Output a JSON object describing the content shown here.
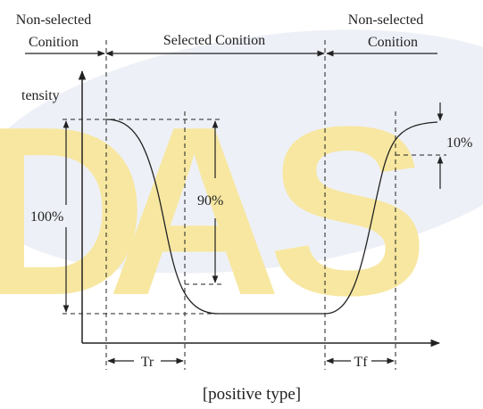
{
  "labels": {
    "left_condition": [
      "Non-selected",
      "Conition"
    ],
    "middle_condition": "Selected Conition",
    "right_condition": [
      "Non-selected",
      "Conition"
    ],
    "y_axis": "tensity",
    "percent_100": "100%",
    "percent_90": "90%",
    "percent_10": "10%",
    "tr": "Tr",
    "tf": "Tf",
    "caption": "[positive type]"
  },
  "watermark": {
    "letters": [
      "D",
      "A",
      "S"
    ],
    "letter_color": "#f7e7a0",
    "swoosh_color": "#eef0f7"
  }
}
